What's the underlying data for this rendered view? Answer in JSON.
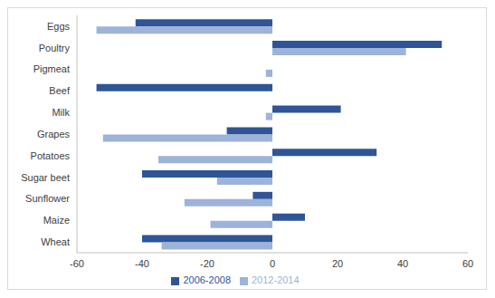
{
  "chart_data": {
    "type": "bar",
    "orientation": "horizontal",
    "categories": [
      "Eggs",
      "Poultry",
      "Pigmeat",
      "Beef",
      "Milk",
      "Grapes",
      "Potatoes",
      "Sugar beet",
      "Sunflower",
      "Maize",
      "Wheat"
    ],
    "series": [
      {
        "name": "2006-2008",
        "color": "#2f5597",
        "values": [
          -42,
          52,
          0,
          -54,
          21,
          -14,
          32,
          -40,
          -6,
          10,
          -40
        ]
      },
      {
        "name": "2012-2014",
        "color": "#9db3d9",
        "values": [
          -54,
          41,
          -2,
          0,
          -2,
          -52,
          -35,
          -17,
          -27,
          -19,
          -34
        ]
      }
    ],
    "xlim": [
      -60,
      60
    ],
    "xticks": [
      -60,
      -40,
      -20,
      0,
      20,
      40,
      60
    ],
    "grid": false,
    "legend": "bottom"
  }
}
